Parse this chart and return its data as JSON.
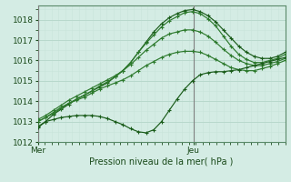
{
  "xlabel": "Pression niveau de la mer( hPa )",
  "bg_color": "#d4ece4",
  "grid_major_color": "#b8d8cc",
  "grid_minor_color": "#c8e4da",
  "line_colors": [
    "#1a5c1a",
    "#2d7a2d",
    "#2d7a2d",
    "#2d7a2d",
    "#1a5c1a"
  ],
  "text_color": "#1a4a1a",
  "ylim": [
    1012,
    1018.7
  ],
  "yticks": [
    1012,
    1013,
    1014,
    1015,
    1016,
    1017,
    1018
  ],
  "xlim": [
    0,
    54
  ],
  "x_mer": 0,
  "x_jeu": 34,
  "vline_color": "#808080",
  "series": [
    [
      1012.7,
      1013.0,
      1013.35,
      1013.6,
      1013.85,
      1014.1,
      1014.3,
      1014.5,
      1014.7,
      1014.9,
      1015.2,
      1015.5,
      1015.9,
      1016.4,
      1016.9,
      1017.4,
      1017.8,
      1018.1,
      1018.3,
      1018.45,
      1018.5,
      1018.4,
      1018.2,
      1017.9,
      1017.5,
      1017.1,
      1016.7,
      1016.4,
      1016.2,
      1016.1,
      1016.1,
      1016.2,
      1016.4
    ],
    [
      1013.0,
      1013.2,
      1013.4,
      1013.65,
      1013.9,
      1014.1,
      1014.3,
      1014.5,
      1014.75,
      1014.95,
      1015.2,
      1015.5,
      1015.9,
      1016.4,
      1016.85,
      1017.25,
      1017.65,
      1017.95,
      1018.15,
      1018.35,
      1018.4,
      1018.3,
      1018.05,
      1017.7,
      1017.2,
      1016.7,
      1016.3,
      1016.05,
      1015.9,
      1015.9,
      1016.0,
      1016.1,
      1016.3
    ],
    [
      1013.1,
      1013.3,
      1013.55,
      1013.8,
      1014.05,
      1014.25,
      1014.45,
      1014.65,
      1014.85,
      1015.05,
      1015.25,
      1015.5,
      1015.8,
      1016.15,
      1016.5,
      1016.8,
      1017.1,
      1017.3,
      1017.4,
      1017.5,
      1017.5,
      1017.4,
      1017.2,
      1016.9,
      1016.55,
      1016.25,
      1016.0,
      1015.85,
      1015.75,
      1015.75,
      1015.85,
      1015.95,
      1016.1
    ],
    [
      1013.0,
      1013.2,
      1013.45,
      1013.7,
      1013.9,
      1014.05,
      1014.2,
      1014.4,
      1014.6,
      1014.75,
      1014.9,
      1015.05,
      1015.25,
      1015.5,
      1015.75,
      1015.95,
      1016.15,
      1016.3,
      1016.4,
      1016.45,
      1016.45,
      1016.4,
      1016.25,
      1016.05,
      1015.85,
      1015.65,
      1015.55,
      1015.5,
      1015.5,
      1015.6,
      1015.7,
      1015.85,
      1016.0
    ],
    [
      1012.75,
      1013.0,
      1013.1,
      1013.2,
      1013.25,
      1013.3,
      1013.3,
      1013.3,
      1013.25,
      1013.15,
      1013.0,
      1012.85,
      1012.65,
      1012.5,
      1012.45,
      1012.6,
      1013.0,
      1013.55,
      1014.1,
      1014.6,
      1015.0,
      1015.3,
      1015.4,
      1015.45,
      1015.45,
      1015.5,
      1015.55,
      1015.65,
      1015.75,
      1015.85,
      1015.95,
      1016.05,
      1016.15
    ]
  ]
}
